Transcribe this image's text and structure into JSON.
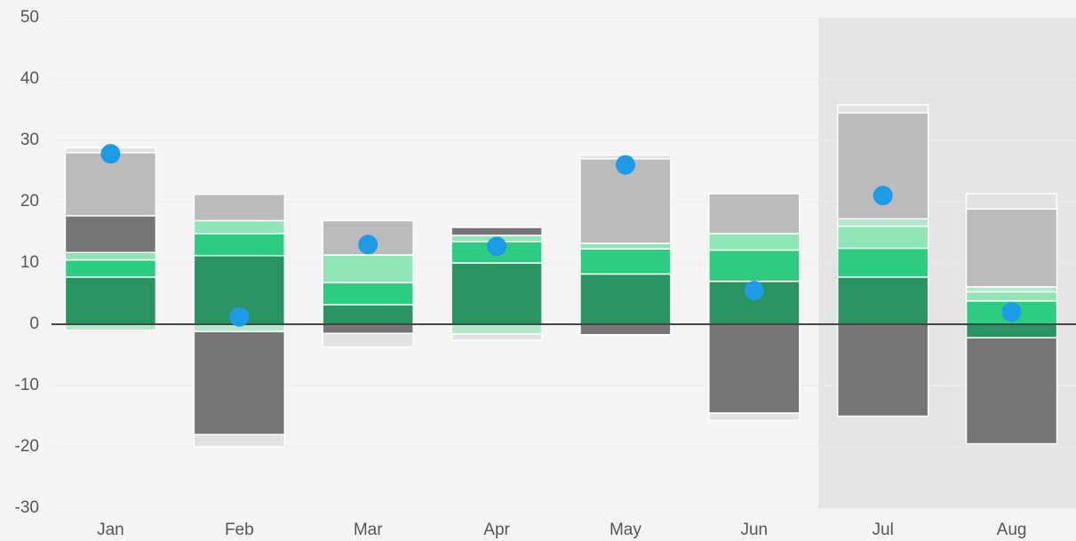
{
  "chart_data": {
    "type": "bar",
    "stacked": true,
    "categories": [
      "Jan",
      "Feb",
      "Mar",
      "Apr",
      "May",
      "Jun",
      "Jul",
      "Aug"
    ],
    "series": [
      {
        "color": "#2a9460",
        "values": [
          7.7,
          11.2,
          3.2,
          10,
          8.2,
          7,
          7.7,
          -2.2
        ]
      },
      {
        "color": "#2ecc80",
        "values": [
          2.8,
          3.6,
          3.6,
          3.5,
          4.1,
          5.1,
          4.7,
          3.8
        ]
      },
      {
        "color": "#8de6b4",
        "values": [
          1.2,
          2.1,
          4.5,
          1,
          0.9,
          2.7,
          3.6,
          1.5
        ]
      },
      {
        "color": "#b4e8cb",
        "values": [
          -1,
          -1.2,
          0,
          -1.6,
          0,
          0,
          1.2,
          0.8
        ]
      },
      {
        "color": "#757575",
        "values": [
          6,
          -16.8,
          -1.5,
          1.3,
          -1.7,
          -14.5,
          -15,
          -17.3
        ]
      },
      {
        "color": "#bbbbbb",
        "values": [
          10.3,
          4.3,
          5.6,
          0,
          13.8,
          6.5,
          17.3,
          12.7
        ]
      },
      {
        "color": "#e2e2e2",
        "values": [
          0.8,
          -2,
          -2.2,
          -1,
          0.6,
          -1.2,
          1.3,
          2.5
        ]
      }
    ],
    "points": {
      "color": "#1e9be6",
      "values": [
        27.8,
        1.2,
        13,
        12.7,
        26,
        5.5,
        21,
        2
      ]
    },
    "highlight_categories": [
      "Jul",
      "Aug"
    ],
    "ylim": [
      -30,
      50
    ],
    "yticks": [
      -30,
      -20,
      -10,
      0,
      10,
      20,
      30,
      40,
      50
    ],
    "grid": true
  }
}
